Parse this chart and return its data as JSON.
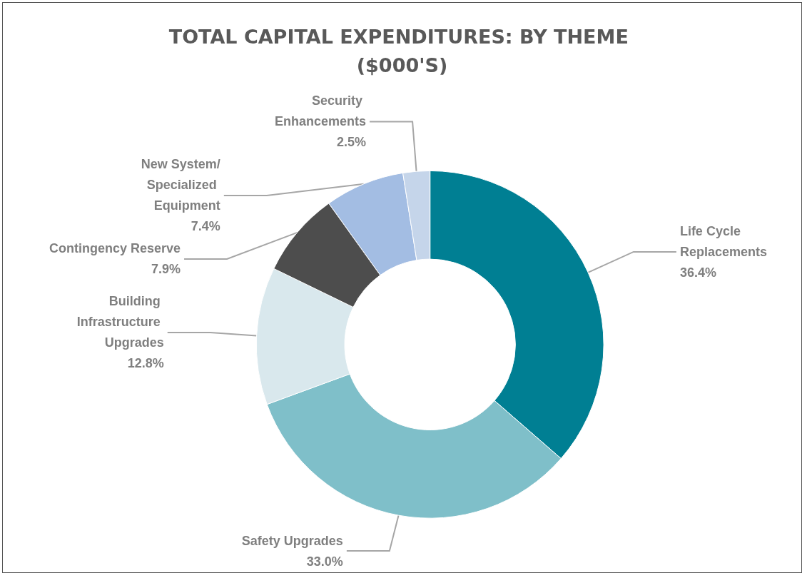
{
  "chart_data": {
    "type": "donut",
    "title": "TOTAL CAPITAL EXPENDITURES: BY THEME ($000'S)",
    "categories": [
      "Life Cycle Replacements",
      "Safety Upgrades",
      "Building Infrastructure Upgrades",
      "Contingency Reserve",
      "New System/Specialized Equipment",
      "Security Enhancements"
    ],
    "values": [
      36.4,
      33.0,
      12.8,
      7.9,
      7.4,
      2.5
    ],
    "value_labels": [
      "36.4%",
      "33.0%",
      "12.8%",
      "7.9%",
      "7.4%",
      "2.5%"
    ],
    "colors": [
      "#007f93",
      "#7fbfc9",
      "#d9e8ed",
      "#4d4d4d",
      "#a3bde3",
      "#c5d5ea"
    ],
    "legend": false
  }
}
